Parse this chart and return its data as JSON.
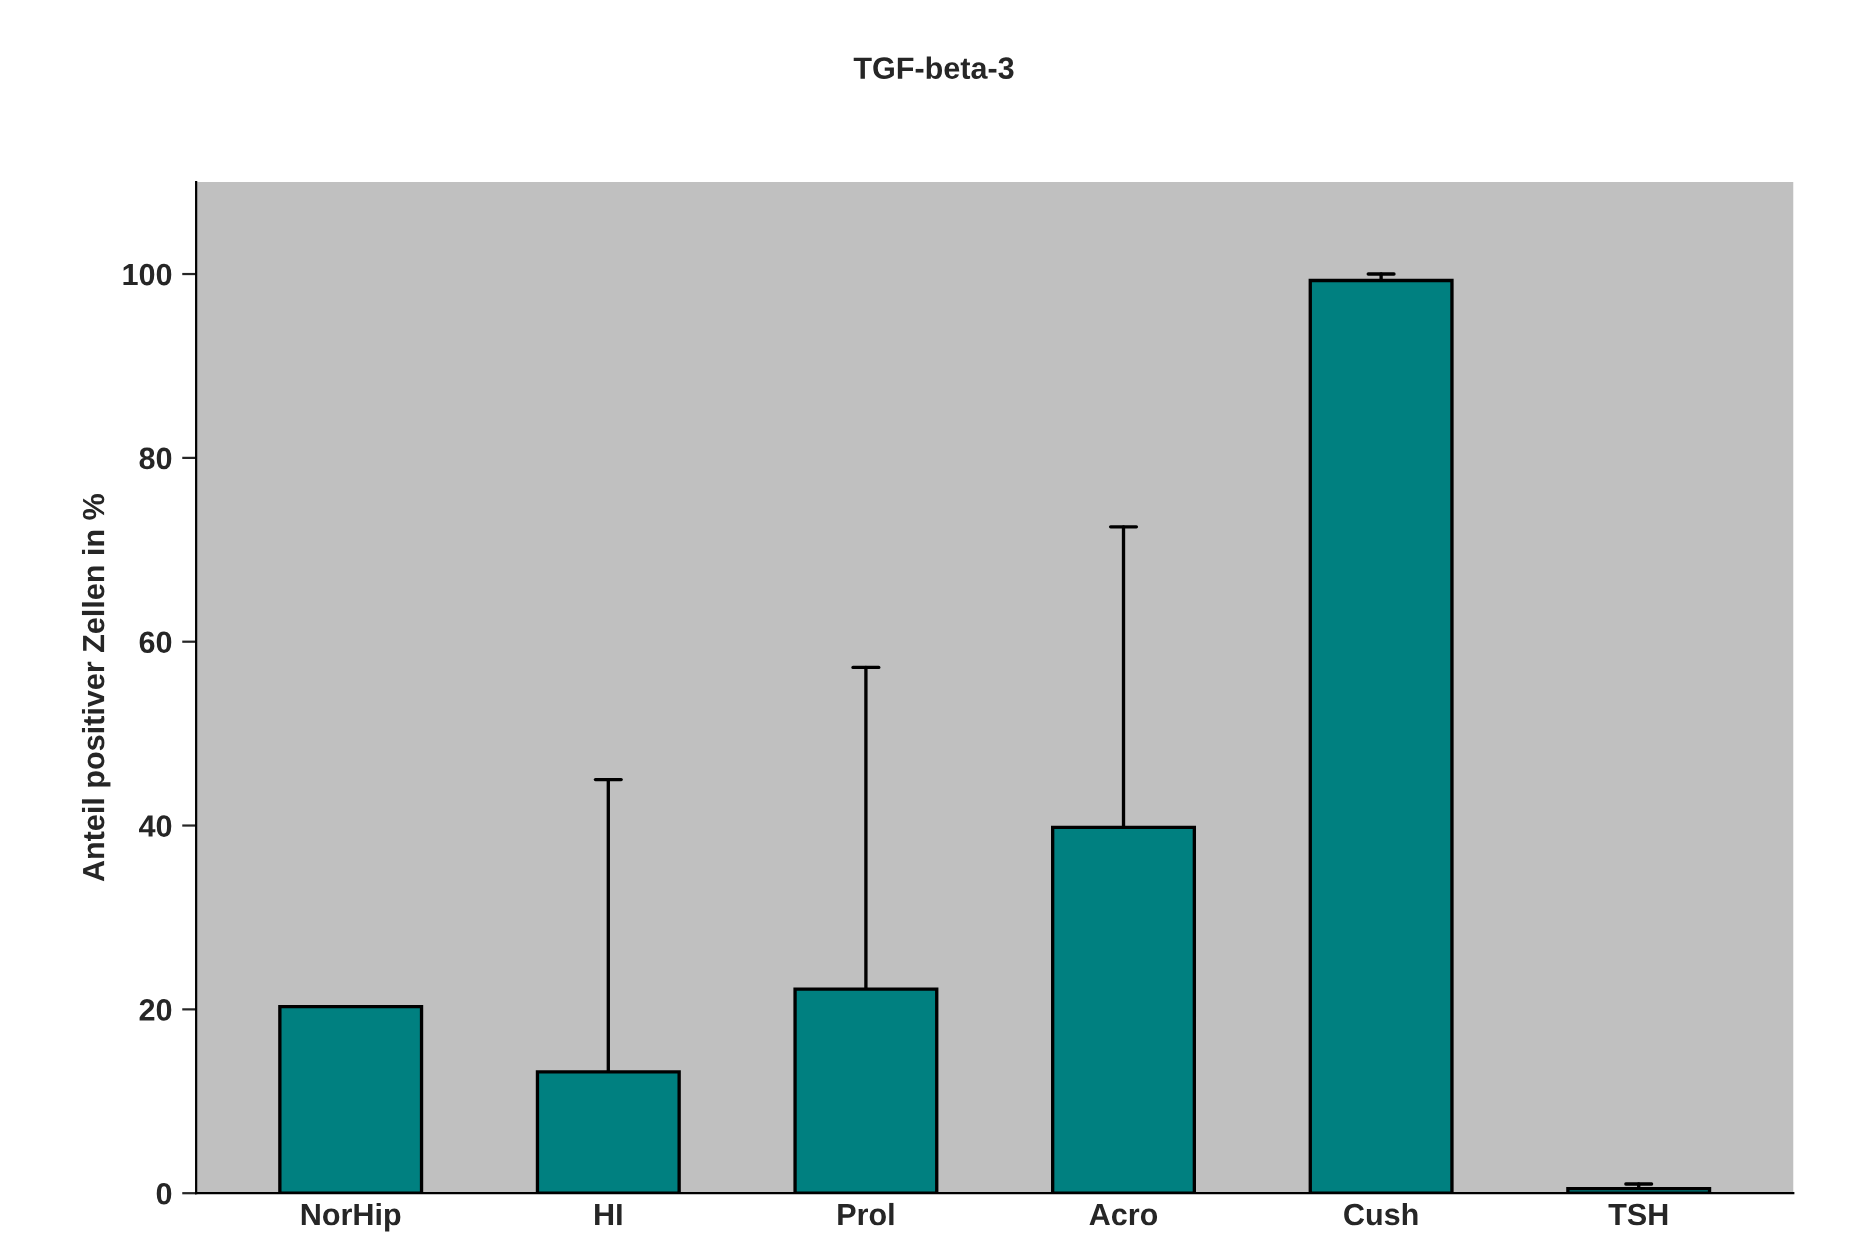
{
  "chart_data": {
    "type": "bar",
    "title": "TGF-beta-3",
    "ylabel": "Anteil positiver Zellen in %",
    "categories": [
      "NorHip",
      "HI",
      "Prol",
      "Acro",
      "Cush",
      "TSH"
    ],
    "values": [
      20.3,
      13.2,
      22.2,
      39.8,
      99.3,
      0.5
    ],
    "errors": [
      null,
      [
        13.2,
        45.0
      ],
      [
        22.2,
        57.2
      ],
      [
        39.8,
        72.5
      ],
      [
        99.3,
        100.0
      ],
      [
        0.5,
        1.0
      ]
    ],
    "color": "#008080",
    "ylim": [
      0,
      110
    ],
    "yticks": [
      0,
      20,
      40,
      60,
      80,
      100
    ],
    "grid": false,
    "legend": false
  }
}
